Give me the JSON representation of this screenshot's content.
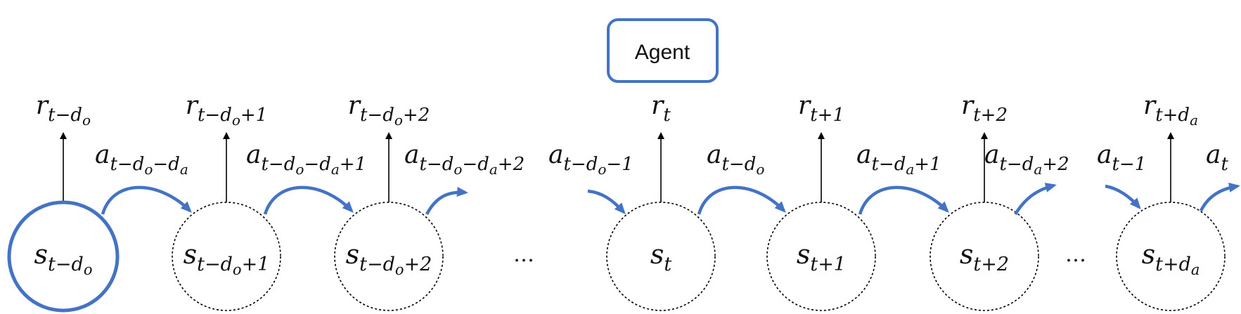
{
  "agent": {
    "label": "Agent"
  },
  "colors": {
    "accent": "#4472c4",
    "stroke": "#000000",
    "agent_border": "#4472c4"
  },
  "states": [
    {
      "id": "s0",
      "base": "s",
      "sub": "t−d",
      "subsub": "o",
      "tail": "",
      "style": "solid"
    },
    {
      "id": "s1",
      "base": "s",
      "sub": "t−d",
      "subsub": "o",
      "tail": "+1",
      "style": "dashed"
    },
    {
      "id": "s2",
      "base": "s",
      "sub": "t−d",
      "subsub": "o",
      "tail": "+2",
      "style": "dashed"
    },
    {
      "id": "s3",
      "base": "s",
      "sub": "t",
      "subsub": "",
      "tail": "",
      "style": "dashed"
    },
    {
      "id": "s4",
      "base": "s",
      "sub": "t+1",
      "subsub": "",
      "tail": "",
      "style": "dashed"
    },
    {
      "id": "s5",
      "base": "s",
      "sub": "t+2",
      "subsub": "",
      "tail": "",
      "style": "dashed"
    },
    {
      "id": "s6",
      "base": "s",
      "sub": "t+d",
      "subsub": "a",
      "tail": "",
      "style": "dashed"
    }
  ],
  "rewards": [
    {
      "base": "r",
      "sub": "t−d",
      "subsub": "o",
      "tail": ""
    },
    {
      "base": "r",
      "sub": "t−d",
      "subsub": "o",
      "tail": "+1"
    },
    {
      "base": "r",
      "sub": "t−d",
      "subsub": "o",
      "tail": "+2"
    },
    {
      "base": "r",
      "sub": "t",
      "subsub": "",
      "tail": ""
    },
    {
      "base": "r",
      "sub": "t+1",
      "subsub": "",
      "tail": ""
    },
    {
      "base": "r",
      "sub": "t+2",
      "subsub": "",
      "tail": ""
    },
    {
      "base": "r",
      "sub": "t+d",
      "subsub": "a",
      "tail": ""
    }
  ],
  "actions": [
    {
      "parts": [
        [
          "a",
          ""
        ],
        [
          "t−d",
          "sub"
        ],
        [
          "o",
          "subsub"
        ],
        [
          "−d",
          "sub"
        ],
        [
          "a",
          "subsub"
        ]
      ]
    },
    {
      "parts": [
        [
          "a",
          ""
        ],
        [
          "t−d",
          "sub"
        ],
        [
          "o",
          "subsub"
        ],
        [
          "−d",
          "sub"
        ],
        [
          "a",
          "subsub"
        ],
        [
          "+1",
          "sub"
        ]
      ]
    },
    {
      "parts": [
        [
          "a",
          ""
        ],
        [
          "t−d",
          "sub"
        ],
        [
          "o",
          "subsub"
        ],
        [
          "−d",
          "sub"
        ],
        [
          "a",
          "subsub"
        ],
        [
          "+2",
          "sub"
        ]
      ]
    },
    {
      "parts": [
        [
          "a",
          ""
        ],
        [
          "t−d",
          "sub"
        ],
        [
          "o",
          "subsub"
        ],
        [
          "−1",
          "sub"
        ]
      ]
    },
    {
      "parts": [
        [
          "a",
          ""
        ],
        [
          "t−d",
          "sub"
        ],
        [
          "o",
          "subsub"
        ]
      ]
    },
    {
      "parts": [
        [
          "a",
          ""
        ],
        [
          "t−d",
          "sub"
        ],
        [
          "a",
          "subsub"
        ],
        [
          "+1",
          "sub"
        ]
      ]
    },
    {
      "parts": [
        [
          "a",
          ""
        ],
        [
          "t−d",
          "sub"
        ],
        [
          "a",
          "subsub"
        ],
        [
          "+2",
          "sub"
        ]
      ]
    },
    {
      "parts": [
        [
          "a",
          ""
        ],
        [
          "t−1",
          "sub"
        ]
      ]
    },
    {
      "parts": [
        [
          "a",
          ""
        ],
        [
          "t",
          "sub"
        ]
      ]
    }
  ],
  "ellipses": [
    "…",
    "…"
  ]
}
